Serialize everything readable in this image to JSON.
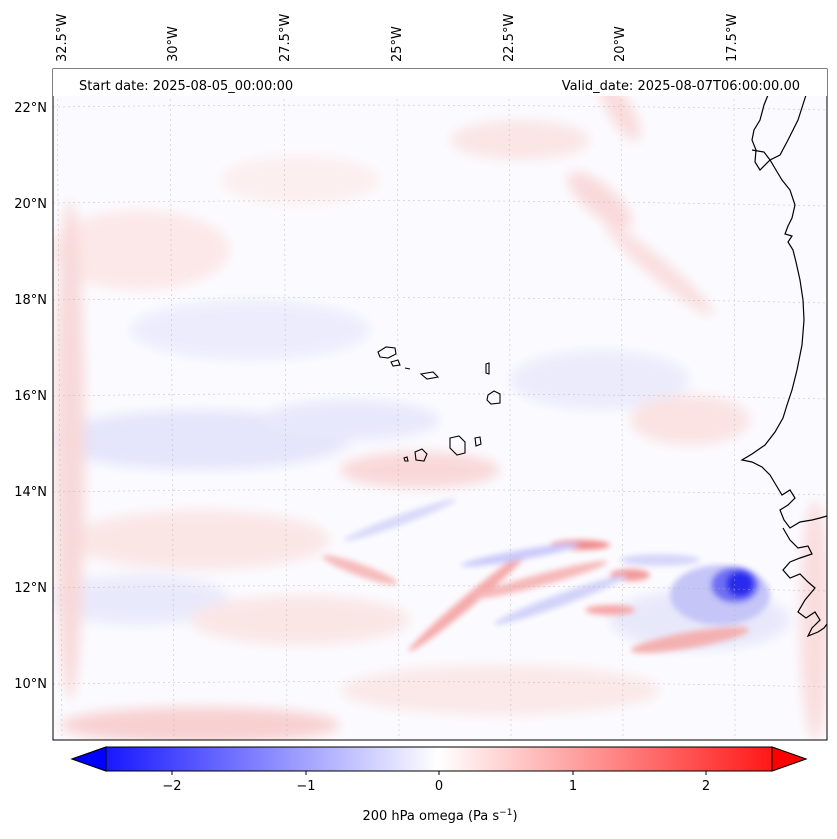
{
  "map": {
    "start_date": "Start date: 2025-08-05_00:00:00",
    "valid_date": "Valid_date: 2025-08-07T06:00:00.00",
    "lon_labels": [
      "32.5°W",
      "30°W",
      "27.5°W",
      "25°W",
      "22.5°W",
      "20°W",
      "17.5°W"
    ],
    "lat_labels": [
      "22°N",
      "20°N",
      "18°N",
      "16°N",
      "14°N",
      "12°N",
      "10°N"
    ],
    "field": "200 hPa omega",
    "colormap": "bwr",
    "colors": {
      "negative": "#0000ff",
      "neutral": "#ffffff",
      "positive": "#ff0000",
      "coastline": "#000000",
      "gridline": "#b0b0b0"
    },
    "notable_feature": "strong negative omega core near 12°N 17°W"
  },
  "colorbar": {
    "label_text": "200 hPa omega (Pa s",
    "label_unit_sup": "−1",
    "label_close": ")",
    "tick_labels": [
      "−2",
      "−1",
      "0",
      "1",
      "2"
    ],
    "range": [
      -2.7,
      2.7
    ],
    "extend": "both"
  }
}
